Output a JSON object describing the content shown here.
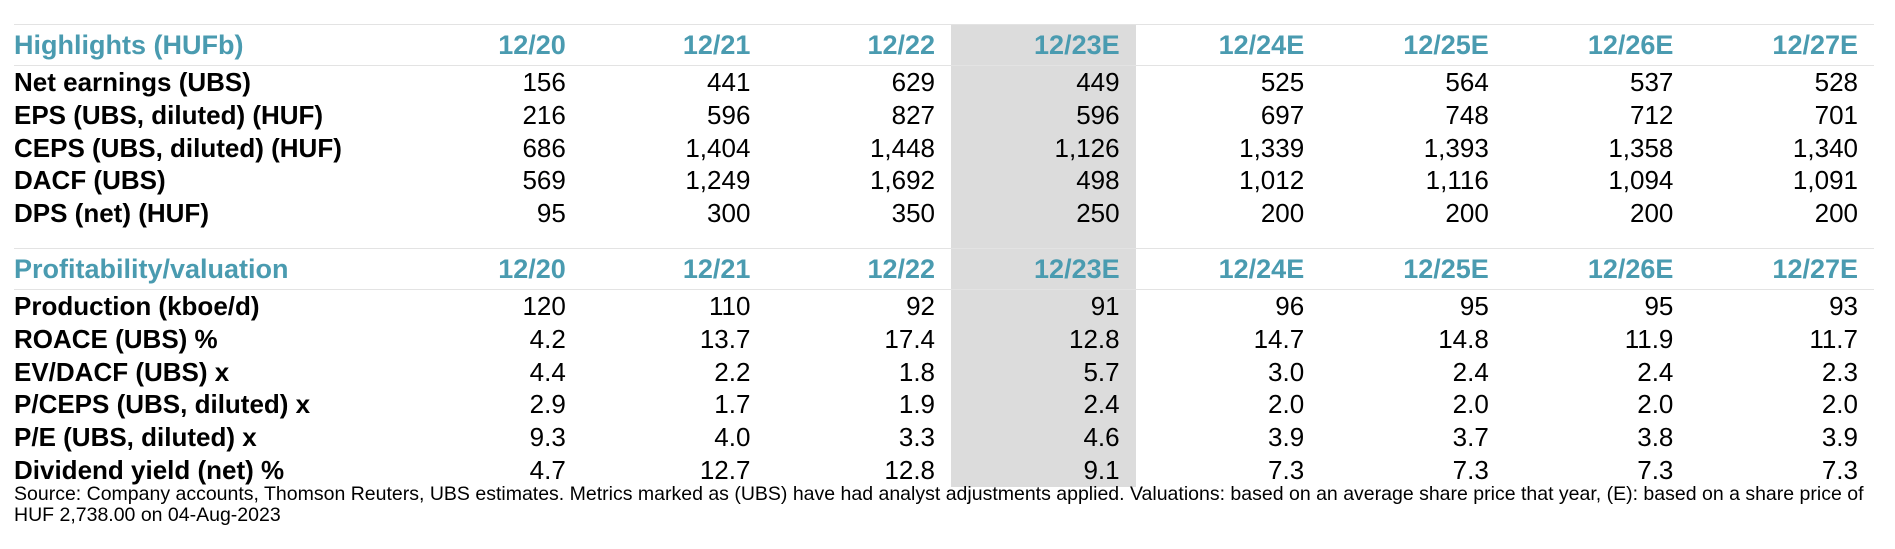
{
  "columns": [
    "12/20",
    "12/21",
    "12/22",
    "12/23E",
    "12/24E",
    "12/25E",
    "12/26E",
    "12/27E"
  ],
  "highlight_color": "#dcdcdc",
  "header_color": "#4a9bb0",
  "highlights": {
    "title": "Highlights (HUFb)",
    "rows": [
      {
        "label": "Net earnings (UBS)",
        "values": [
          "156",
          "441",
          "629",
          "449",
          "525",
          "564",
          "537",
          "528"
        ]
      },
      {
        "label": "EPS (UBS, diluted) (HUF)",
        "values": [
          "216",
          "596",
          "827",
          "596",
          "697",
          "748",
          "712",
          "701"
        ]
      },
      {
        "label": "CEPS (UBS, diluted) (HUF)",
        "values": [
          "686",
          "1,404",
          "1,448",
          "1,126",
          "1,339",
          "1,393",
          "1,358",
          "1,340"
        ]
      },
      {
        "label": "DACF (UBS)",
        "values": [
          "569",
          "1,249",
          "1,692",
          "498",
          "1,012",
          "1,116",
          "1,094",
          "1,091"
        ]
      },
      {
        "label": "DPS (net) (HUF)",
        "values": [
          "95",
          "300",
          "350",
          "250",
          "200",
          "200",
          "200",
          "200"
        ]
      }
    ]
  },
  "profitability": {
    "title": "Profitability/valuation",
    "rows": [
      {
        "label": "Production (kboe/d)",
        "values": [
          "120",
          "110",
          "92",
          "91",
          "96",
          "95",
          "95",
          "93"
        ]
      },
      {
        "label": "ROACE (UBS) %",
        "values": [
          "4.2",
          "13.7",
          "17.4",
          "12.8",
          "14.7",
          "14.8",
          "11.9",
          "11.7"
        ]
      },
      {
        "label": "EV/DACF (UBS) x",
        "values": [
          "4.4",
          "2.2",
          "1.8",
          "5.7",
          "3.0",
          "2.4",
          "2.4",
          "2.3"
        ]
      },
      {
        "label": "P/CEPS (UBS, diluted) x",
        "values": [
          "2.9",
          "1.7",
          "1.9",
          "2.4",
          "2.0",
          "2.0",
          "2.0",
          "2.0"
        ]
      },
      {
        "label": "P/E (UBS, diluted) x",
        "values": [
          "9.3",
          "4.0",
          "3.3",
          "4.6",
          "3.9",
          "3.7",
          "3.8",
          "3.9"
        ]
      },
      {
        "label": "Dividend yield (net) %",
        "values": [
          "4.7",
          "12.7",
          "12.8",
          "9.1",
          "7.3",
          "7.3",
          "7.3",
          "7.3"
        ]
      }
    ]
  },
  "source_note": "Source: Company accounts, Thomson Reuters, UBS estimates. Metrics marked as (UBS) have had analyst adjustments applied. Valuations: based on an average share price that year, (E): based on a share price of HUF 2,738.00 on 04-Aug-2023"
}
